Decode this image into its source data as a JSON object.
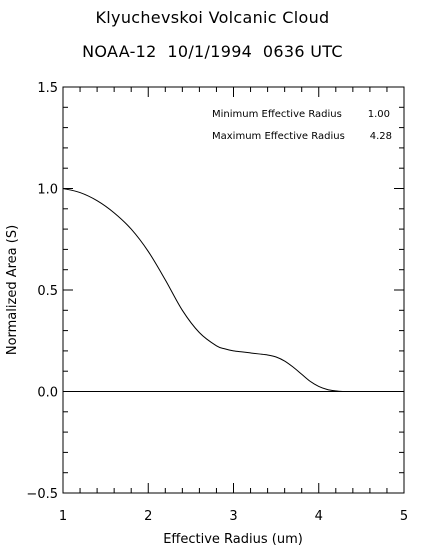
{
  "chart_data": {
    "type": "line",
    "title": "Klyuchevskoi Volcanic Cloud",
    "subtitle": "NOAA-12  10/1/1994  0636 UTC",
    "xlabel": "Effective Radius (um)",
    "ylabel": "Normalized Area (S)",
    "xlim": [
      1,
      5
    ],
    "ylim": [
      -0.5,
      1.5
    ],
    "x_ticks": [
      "1",
      "2",
      "3",
      "4",
      "5"
    ],
    "y_ticks": [
      "−0.5",
      "0.0",
      "0.5",
      "1.0",
      "1.5"
    ],
    "grid": false,
    "legend": "none",
    "annotations": [
      {
        "label": "Minimum Effective Radius",
        "value": "1.00"
      },
      {
        "label": "Maximum Effective Radius",
        "value": "4.28"
      }
    ],
    "reference_line": {
      "y": 0.0
    },
    "series": [
      {
        "x": [
          1.0,
          1.2,
          1.4,
          1.6,
          1.8,
          2.0,
          2.2,
          2.4,
          2.6,
          2.8,
          2.9,
          3.0,
          3.1,
          3.2,
          3.3,
          3.4,
          3.5,
          3.6,
          3.7,
          3.8,
          3.9,
          4.0,
          4.1,
          4.2,
          4.28,
          4.32
        ],
        "y": [
          1.0,
          0.98,
          0.94,
          0.88,
          0.8,
          0.69,
          0.55,
          0.4,
          0.29,
          0.225,
          0.21,
          0.2,
          0.195,
          0.19,
          0.185,
          0.18,
          0.17,
          0.15,
          0.12,
          0.085,
          0.05,
          0.025,
          0.01,
          0.003,
          0.0,
          0.0
        ]
      }
    ],
    "colors": {
      "line": "#000000",
      "axes": "#000000",
      "background": "#ffffff"
    }
  }
}
